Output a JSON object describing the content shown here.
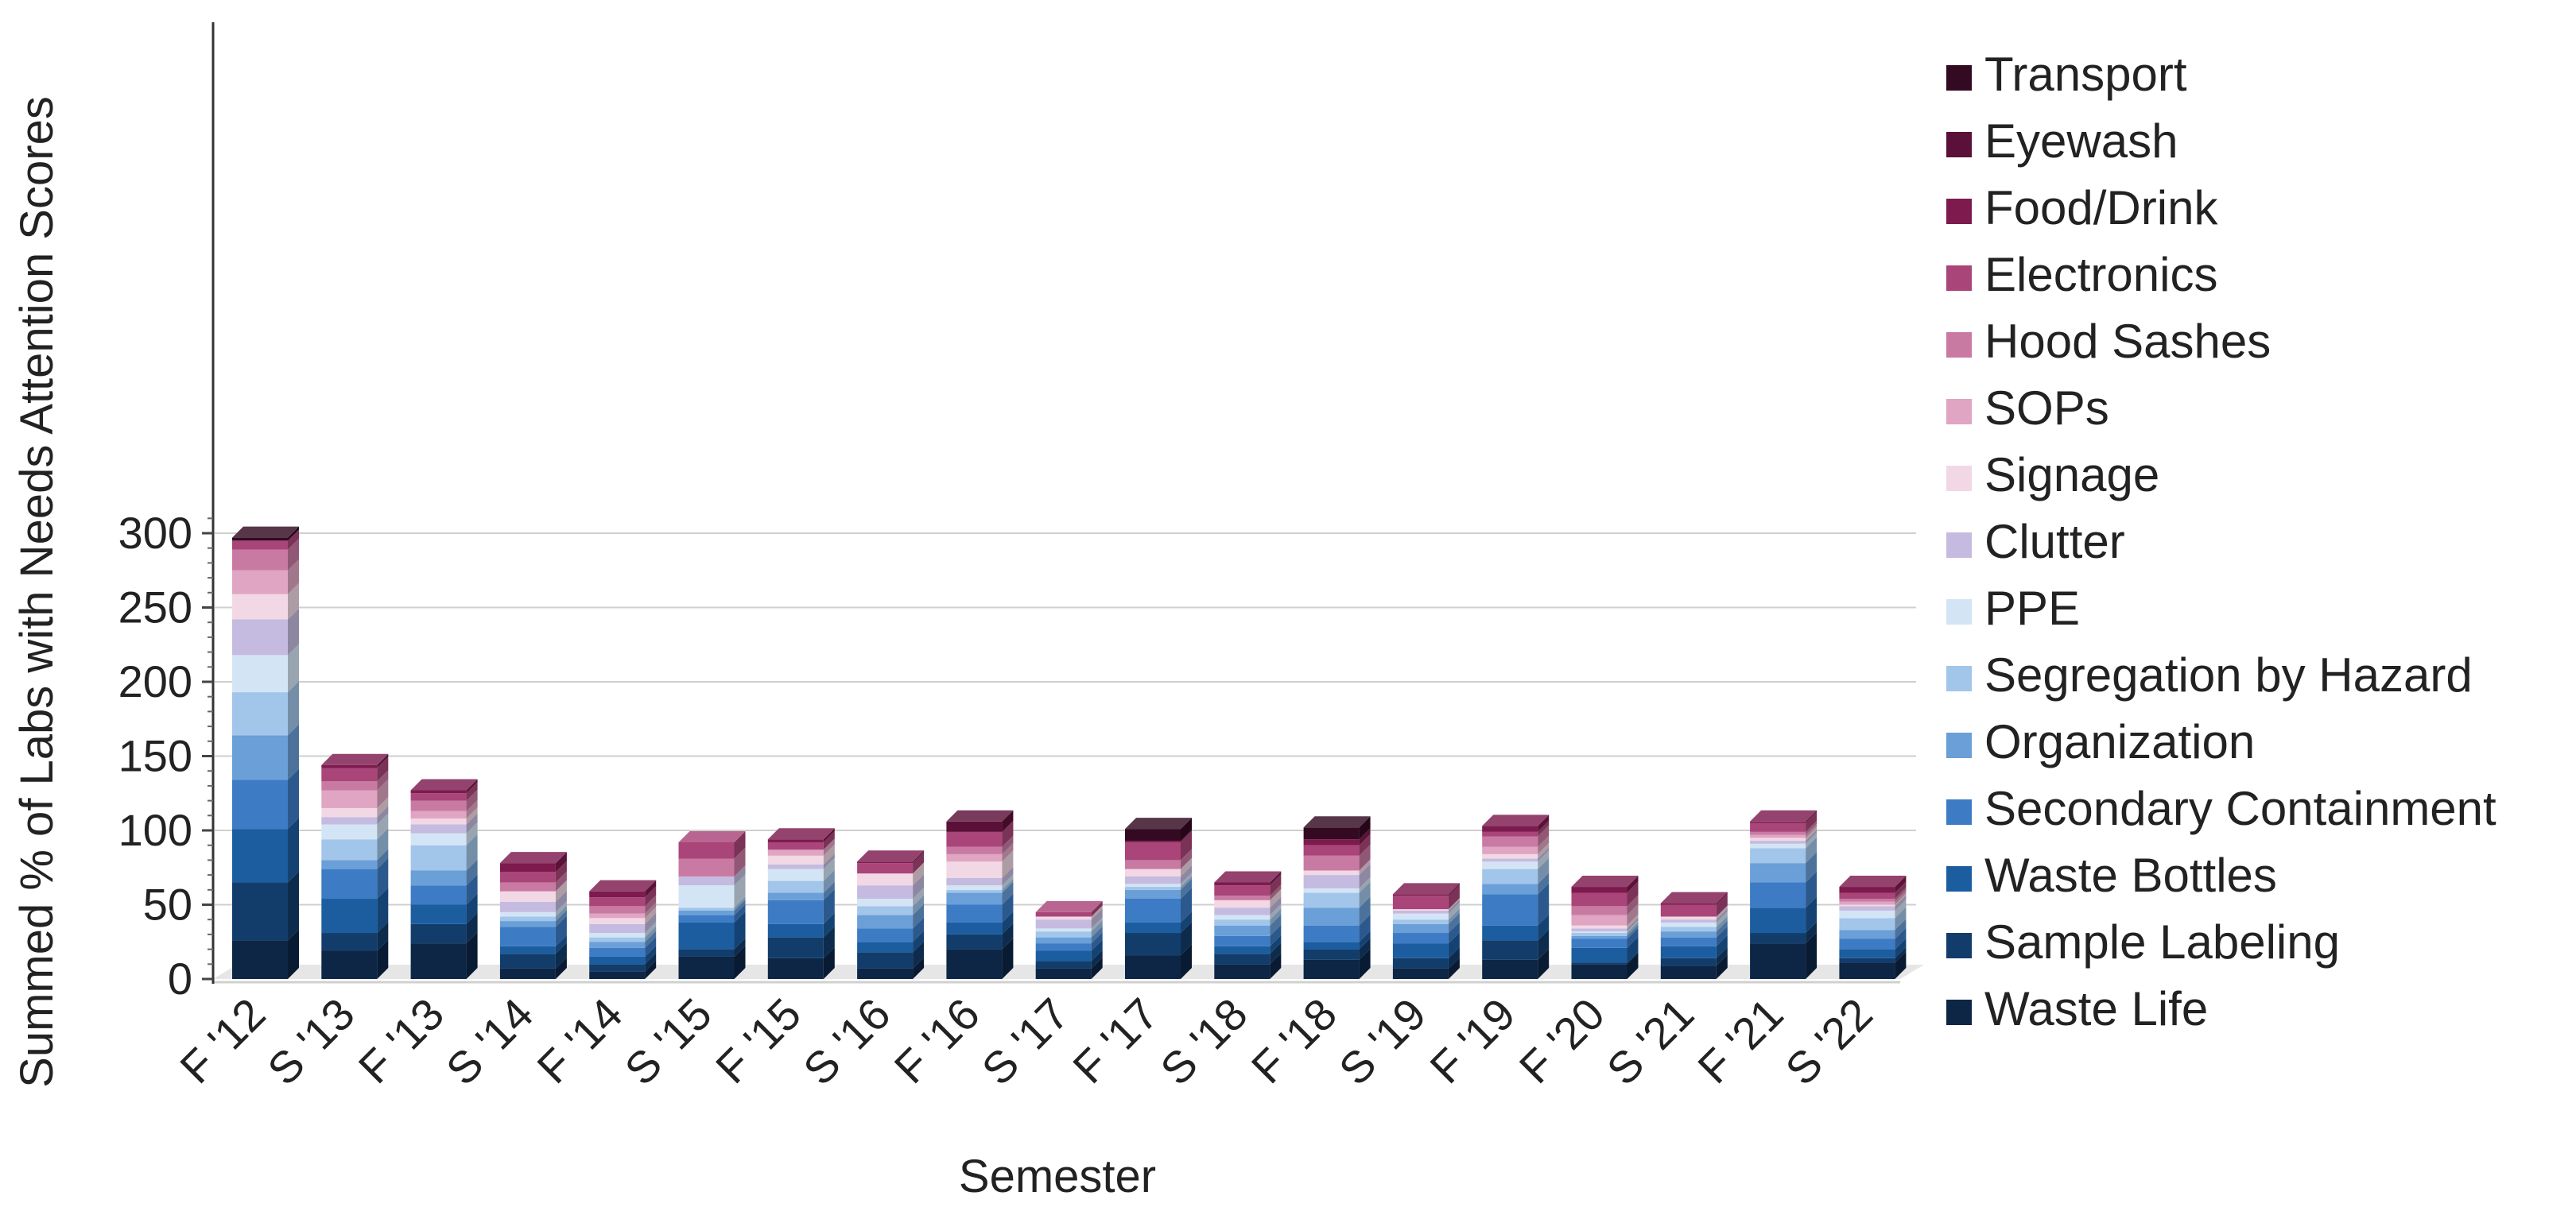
{
  "chart_data": {
    "type": "bar",
    "stacked": true,
    "xlabel": "Semester",
    "ylabel": "Summed % of Labs with Needs Attention Scores",
    "ylim": [
      0,
      320
    ],
    "yticks": [
      0,
      50,
      100,
      150,
      200,
      250,
      300
    ],
    "grid": true,
    "legend_position": "right",
    "categories": [
      "F '12",
      "S '13",
      "F '13",
      "S '14",
      "F '14",
      "S '15",
      "F '15",
      "S '16",
      "F '16",
      "S '17",
      "F '17",
      "S '18",
      "F '18",
      "S '19",
      "F '19",
      "F '20",
      "S '21",
      "F '21",
      "S '22"
    ],
    "series": [
      {
        "name": "Waste Life",
        "color": "#0d2646",
        "values": [
          26,
          19,
          24,
          7,
          5,
          15,
          14,
          7,
          20,
          7,
          16,
          10,
          13,
          7,
          13,
          10,
          9,
          24,
          11
        ]
      },
      {
        "name": "Sample Labeling",
        "color": "#123d6b",
        "values": [
          39,
          12,
          13,
          10,
          5,
          5,
          14,
          11,
          10,
          5,
          15,
          7,
          7,
          7,
          13,
          1,
          5,
          7,
          3
        ]
      },
      {
        "name": "Waste Bottles",
        "color": "#1c5da0",
        "values": [
          36,
          23,
          13,
          5,
          5,
          18,
          9,
          7,
          8,
          7,
          7,
          5,
          5,
          10,
          10,
          10,
          8,
          17,
          6
        ]
      },
      {
        "name": "Secondary Containment",
        "color": "#3d7cc4",
        "values": [
          33,
          20,
          13,
          13,
          6,
          5,
          16,
          9,
          12,
          5,
          16,
          7,
          11,
          7,
          21,
          6,
          6,
          17,
          7
        ]
      },
      {
        "name": "Organization",
        "color": "#6a9fd8",
        "values": [
          30,
          6,
          10,
          4,
          4,
          3,
          5,
          9,
          8,
          4,
          6,
          7,
          12,
          6,
          7,
          2,
          4,
          13,
          6
        ]
      },
      {
        "name": "Segregation by Hazard",
        "color": "#a2c5ea",
        "values": [
          29,
          14,
          17,
          3,
          3,
          2,
          8,
          6,
          2,
          4,
          2,
          4,
          10,
          3,
          10,
          2,
          3,
          10,
          8
        ]
      },
      {
        "name": "PPE",
        "color": "#d3e5f5",
        "values": [
          25,
          10,
          8,
          3,
          3,
          15,
          8,
          5,
          3,
          2,
          2,
          3,
          3,
          4,
          5,
          1,
          3,
          3,
          5
        ]
      },
      {
        "name": "Clutter",
        "color": "#c5bbe0",
        "values": [
          24,
          5,
          6,
          7,
          6,
          6,
          3,
          9,
          5,
          6,
          5,
          5,
          9,
          2,
          2,
          2,
          2,
          2,
          3
        ]
      },
      {
        "name": "Signage",
        "color": "#f2d8e4",
        "values": [
          17,
          6,
          4,
          7,
          4,
          0,
          6,
          8,
          11,
          2,
          5,
          5,
          3,
          1,
          3,
          2,
          2,
          2,
          1
        ]
      },
      {
        "name": "SOPs",
        "color": "#dfa5c2",
        "values": [
          16,
          12,
          5,
          0,
          3,
          0,
          4,
          0,
          5,
          0,
          0,
          0,
          0,
          0,
          5,
          7,
          0,
          2,
          2
        ]
      },
      {
        "name": "Hood Sashes",
        "color": "#c97aa3",
        "values": [
          14,
          6,
          7,
          6,
          5,
          12,
          0,
          0,
          5,
          0,
          6,
          3,
          10,
          0,
          7,
          6,
          0,
          2,
          2
        ]
      },
      {
        "name": "Electronics",
        "color": "#a94579",
        "values": [
          6,
          9,
          5,
          7,
          6,
          11,
          5,
          7,
          10,
          3,
          12,
          7,
          7,
          9,
          3,
          9,
          8,
          6,
          4
        ]
      },
      {
        "name": "Food/Drink",
        "color": "#7d1a4e",
        "values": [
          0,
          2,
          2,
          6,
          4,
          0,
          2,
          1,
          0,
          0,
          1,
          2,
          4,
          1,
          4,
          4,
          1,
          1,
          4
        ]
      },
      {
        "name": "Eyewash",
        "color": "#5a1038",
        "values": [
          0,
          0,
          0,
          0,
          0,
          0,
          0,
          0,
          7,
          0,
          0,
          0,
          0,
          0,
          0,
          0,
          0,
          0,
          0
        ]
      },
      {
        "name": "Transport",
        "color": "#330a22",
        "values": [
          2,
          0,
          0,
          0,
          0,
          0,
          0,
          0,
          0,
          0,
          8,
          0,
          8,
          0,
          0,
          0,
          0,
          0,
          0
        ]
      }
    ]
  }
}
